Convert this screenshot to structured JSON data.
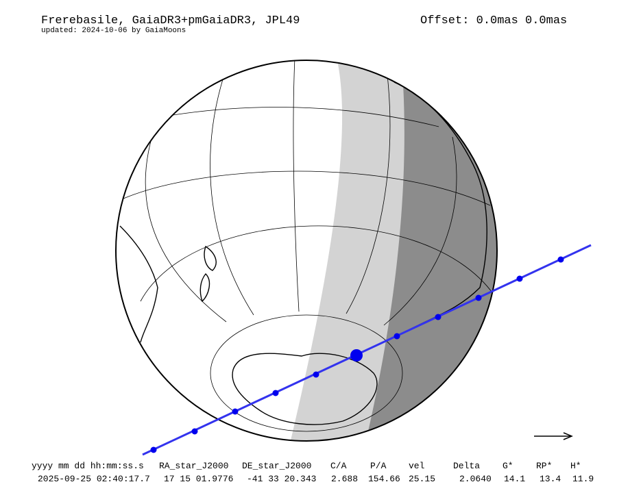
{
  "header": {
    "title": "Frerebasile, GaiaDR3+pmGaiaDR3, JPL49",
    "subtitle": "updated: 2024-10-06 by GaiaMoons",
    "offset": "Offset: 0.0mas 0.0mas"
  },
  "table": {
    "columns": [
      "yyyy mm dd hh:mm:ss.s",
      "RA_star_J2000",
      "DE_star_J2000",
      "C/A",
      "P/A",
      "vel",
      "Delta",
      "G*",
      "RP*",
      "H*"
    ],
    "rows": [
      [
        "2025-09-25 02:40:17.7",
        "17 15 01.9776",
        "-41 33 20.343",
        "2.688",
        "154.66",
        "25.15",
        "2.0640",
        "14.1",
        "13.4",
        "11.9"
      ]
    ]
  }
}
